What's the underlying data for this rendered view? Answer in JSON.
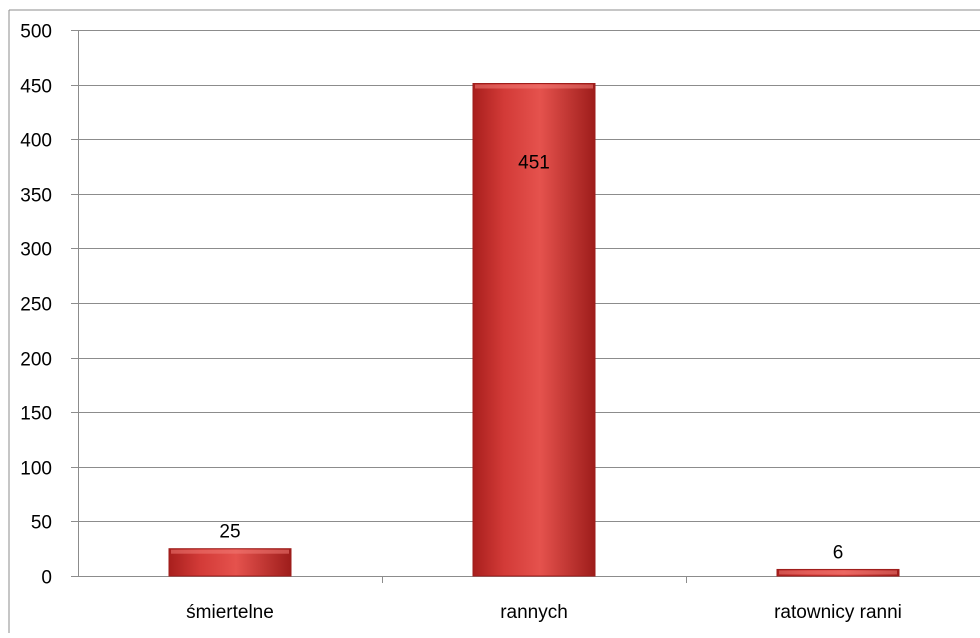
{
  "chart_data": {
    "type": "bar",
    "categories": [
      "śmiertelne",
      "rannych",
      "ratownicy ranni"
    ],
    "values": [
      25,
      451,
      6
    ],
    "data_labels": [
      "25",
      "451",
      "6"
    ],
    "ylim": [
      0,
      500
    ],
    "yticks": [
      0,
      50,
      100,
      150,
      200,
      250,
      300,
      350,
      400,
      450,
      500
    ],
    "grid": true,
    "legend": "none",
    "colors": {
      "bar": "#c8302e",
      "bar_light": "#e04a46",
      "bar_dark": "#9e1d1b",
      "grid": "#8c8c8c",
      "frame": "#8c8c8c"
    }
  }
}
